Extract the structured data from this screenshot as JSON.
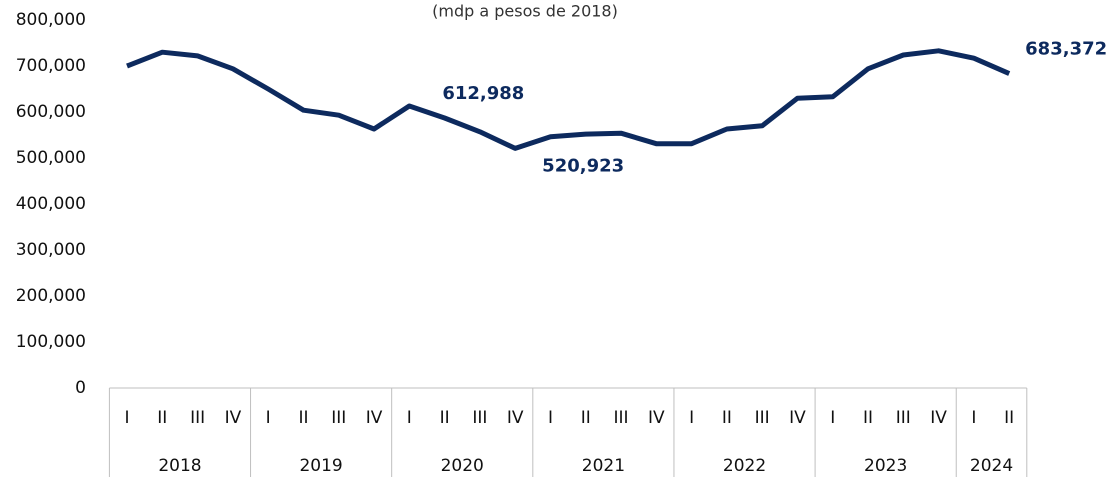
{
  "chart_data": {
    "type": "line",
    "subtitle": "(mdp a pesos de 2018)",
    "categories": [
      "I",
      "II",
      "III",
      "IV",
      "I",
      "II",
      "III",
      "IV",
      "I",
      "II",
      "III",
      "IV",
      "I",
      "II",
      "III",
      "IV",
      "I",
      "II",
      "III",
      "IV",
      "I",
      "II",
      "III",
      "IV",
      "I",
      "II"
    ],
    "years": [
      "2018",
      "2019",
      "2020",
      "2021",
      "2022",
      "2023",
      "2024"
    ],
    "series": [
      {
        "color": "#0d2a5e",
        "values": [
          700000,
          730000,
          722000,
          694000,
          650000,
          604000,
          593000,
          563000,
          612988,
          587000,
          557000,
          520923,
          546000,
          552000,
          554000,
          531000,
          531000,
          563000,
          570000,
          630000,
          633000,
          694000,
          724000,
          733000,
          717000,
          683372
        ],
        "value_labels": [
          null,
          null,
          null,
          null,
          null,
          null,
          null,
          null,
          "612,988",
          null,
          null,
          "520,923",
          null,
          null,
          null,
          null,
          null,
          null,
          null,
          null,
          null,
          null,
          null,
          null,
          null,
          "683,372"
        ]
      }
    ],
    "ylim": [
      0,
      800000
    ],
    "yticks": [
      0,
      {
        "value": 100000,
        "label": "100,000"
      },
      {
        "value": 200000,
        "label": "200,000"
      },
      {
        "value": 300000,
        "label": "300,000"
      },
      {
        "value": 400000,
        "label": "400,000"
      },
      {
        "value": 500000,
        "label": "500,000"
      },
      {
        "value": 600000,
        "label": "600,000"
      },
      {
        "value": 700000,
        "label": "700,000"
      },
      {
        "value": 800000,
        "label": "800,000"
      }
    ],
    "grid": false
  }
}
